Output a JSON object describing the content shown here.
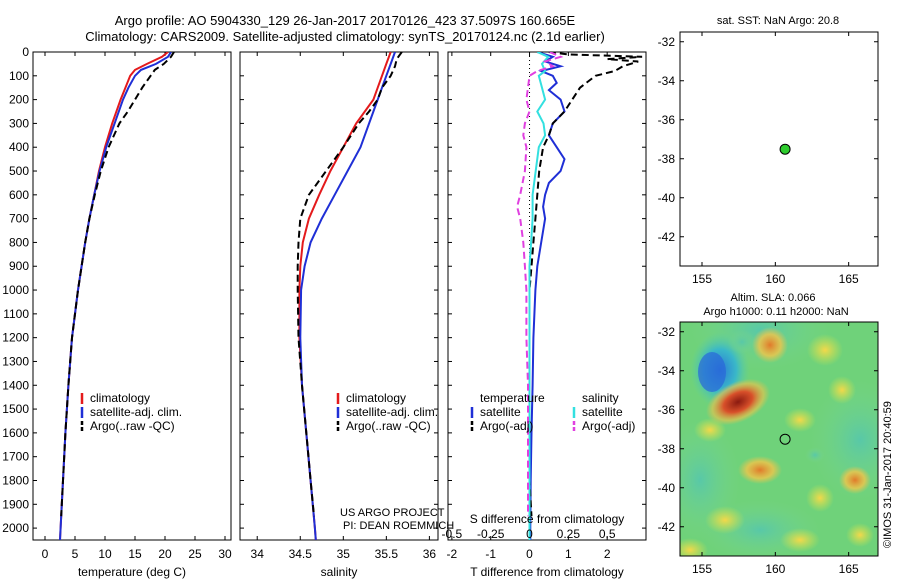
{
  "header": {
    "line1": "Argo profile: AO 5904330_129 26-Jan-2017 20170126_423 37.5097S 160.665E",
    "line2": "Climatology: CARS2009. Satellite-adjusted climatology: synTS_20170124.nc (2.1d earlier)"
  },
  "colors": {
    "climatology": "#e41a1c",
    "satellite": "#1f2fd6",
    "argo": "#000000",
    "salinity_satellite": "#33e0e0",
    "salinity_argo": "#e040e0",
    "float_marker": "#2ecc2e"
  },
  "map_top": {
    "title": "sat. SST: NaN Argo: 20.8"
  },
  "map_bottom": {
    "title_line1": "Altim. SLA: 0.066",
    "title_line2": "Argo h1000: 0.11 h2000: NaN"
  },
  "credit": "©IMOS 31-Jan-2017 20:40:59",
  "chart_data": [
    {
      "type": "line",
      "xlabel": "temperature (deg C)",
      "ylabel": "",
      "xlim": [
        -2,
        31
      ],
      "ylim": [
        2050,
        0
      ],
      "xticks": [
        "0",
        "5",
        "10",
        "15",
        "20",
        "25",
        "30"
      ],
      "yticks": [
        "0",
        "100",
        "200",
        "300",
        "400",
        "500",
        "600",
        "700",
        "800",
        "900",
        "1000",
        "1100",
        "1200",
        "1300",
        "1400",
        "1500",
        "1600",
        "1700",
        "1800",
        "1900",
        "2000"
      ],
      "legend": [
        "climatology",
        "satellite-adj. clim.",
        "Argo(..raw -QC)"
      ],
      "legend_position": "lower-center",
      "series": [
        {
          "name": "climatology",
          "style": "solid",
          "color": "#e41a1c",
          "depth": [
            0,
            20,
            50,
            75,
            100,
            150,
            200,
            300,
            400,
            500,
            600,
            700,
            800,
            900,
            1000,
            1200,
            1400,
            1600,
            1800,
            2000,
            2050
          ],
          "values": [
            20.5,
            19.5,
            17,
            15,
            14.2,
            13.4,
            12.6,
            11.2,
            10,
            9,
            8.2,
            7.4,
            6.7,
            6.1,
            5.5,
            4.5,
            3.9,
            3.4,
            3.0,
            2.6,
            2.5
          ]
        },
        {
          "name": "satellite-adj. clim.",
          "style": "solid",
          "color": "#1f2fd6",
          "depth": [
            0,
            20,
            50,
            75,
            100,
            150,
            200,
            300,
            400,
            500,
            600,
            700,
            800,
            900,
            1000,
            1200,
            1400,
            1600,
            1800,
            2000,
            2050
          ],
          "values": [
            21,
            20.5,
            18.5,
            16,
            15,
            13.9,
            13,
            11.6,
            10.2,
            9.1,
            8.2,
            7.4,
            6.7,
            6.1,
            5.5,
            4.5,
            3.9,
            3.4,
            3.0,
            2.6,
            2.5
          ]
        },
        {
          "name": "Argo(..raw -QC)",
          "style": "dashed",
          "color": "#000000",
          "depth": [
            0,
            20,
            50,
            75,
            100,
            150,
            200,
            250,
            300,
            400,
            500,
            600,
            700,
            800,
            900,
            1000,
            1200,
            1400,
            1600,
            1800,
            1950
          ],
          "values": [
            21.5,
            21,
            19.8,
            18.3,
            17.6,
            16.2,
            15,
            13.8,
            12.4,
            10.6,
            9.3,
            8.3,
            7.4,
            6.7,
            6.1,
            5.5,
            4.5,
            3.9,
            3.4,
            3.0,
            2.7
          ]
        }
      ]
    },
    {
      "type": "line",
      "xlabel": "salinity",
      "ylabel": "",
      "xlim": [
        33.8,
        36.1
      ],
      "ylim": [
        2050,
        0
      ],
      "xticks": [
        "34",
        "34.5",
        "35",
        "35.5",
        "36"
      ],
      "legend": [
        "climatology",
        "satellite-adj. clim.",
        "Argo(..raw -QC)"
      ],
      "legend_position": "lower-center",
      "annotation": [
        "US ARGO PROJECT",
        "PI: DEAN ROEMMICH"
      ],
      "series": [
        {
          "name": "climatology",
          "style": "solid",
          "color": "#e41a1c",
          "depth": [
            0,
            50,
            100,
            150,
            200,
            300,
            400,
            500,
            600,
            700,
            800,
            900,
            1000,
            1200,
            1400,
            1600,
            1800,
            2000,
            2050
          ],
          "values": [
            35.55,
            35.5,
            35.45,
            35.4,
            35.35,
            35.15,
            35.0,
            34.85,
            34.72,
            34.6,
            34.53,
            34.5,
            34.49,
            34.49,
            34.52,
            34.57,
            34.62,
            34.67,
            34.68
          ]
        },
        {
          "name": "satellite-adj. clim.",
          "style": "solid",
          "color": "#1f2fd6",
          "depth": [
            0,
            50,
            100,
            150,
            200,
            250,
            300,
            400,
            500,
            600,
            700,
            800,
            900,
            1000,
            1200,
            1400,
            1600,
            1800,
            2000,
            2050
          ],
          "values": [
            35.6,
            35.55,
            35.5,
            35.45,
            35.4,
            35.35,
            35.3,
            35.2,
            35.05,
            34.9,
            34.75,
            34.62,
            34.55,
            34.51,
            34.5,
            34.52,
            34.57,
            34.62,
            34.67,
            34.68
          ]
        },
        {
          "name": "Argo(..raw -QC)",
          "style": "dashed",
          "color": "#000000",
          "depth": [
            0,
            30,
            60,
            100,
            150,
            200,
            250,
            300,
            400,
            500,
            600,
            700,
            800,
            900,
            1000,
            1200,
            1400,
            1600,
            1800,
            1950
          ],
          "values": [
            35.68,
            35.62,
            35.6,
            35.55,
            35.45,
            35.4,
            35.3,
            35.18,
            35.0,
            34.8,
            34.6,
            34.5,
            34.48,
            34.47,
            34.47,
            34.48,
            34.52,
            34.57,
            34.62,
            34.66
          ]
        }
      ]
    },
    {
      "type": "line",
      "xlabel": "T difference from climatology",
      "secondary_xlabel": "S difference from climatology",
      "xlim": [
        -2.1,
        3.0
      ],
      "secondary_xlim": [
        -0.525,
        0.75
      ],
      "ylim": [
        2050,
        0
      ],
      "xticks": [
        "-2",
        "-1",
        "0",
        "1",
        "2"
      ],
      "secondary_xticks": [
        "-0.5",
        "-0.25",
        "0",
        "0.25",
        "0.5"
      ],
      "legend_groups": [
        {
          "title": "temperature",
          "entries": [
            "satellite",
            "Argo(-adj)"
          ]
        },
        {
          "title": "salinity",
          "entries": [
            "satellite",
            "Argo(-adj)"
          ]
        }
      ],
      "legend_position": "lower-center",
      "series": [
        {
          "name": "satellite",
          "group": "temperature",
          "style": "solid",
          "color": "#1f2fd6",
          "depth": [
            0,
            20,
            40,
            60,
            80,
            100,
            130,
            160,
            200,
            250,
            300,
            350,
            400,
            450,
            500,
            550,
            600,
            650,
            700,
            800,
            900,
            1000,
            1200,
            1400,
            1600,
            1800,
            2000,
            2050
          ],
          "values": [
            0.2,
            0.6,
            0.4,
            0.8,
            0.3,
            0.6,
            0.7,
            0.5,
            0.8,
            0.9,
            0.6,
            0.5,
            0.7,
            0.9,
            0.8,
            0.5,
            0.4,
            0.35,
            0.4,
            0.3,
            0.2,
            0.15,
            0.1,
            0.08,
            0.05,
            0.03,
            0.02,
            0.02
          ]
        },
        {
          "name": "Argo(-adj)",
          "group": "temperature",
          "style": "dashed",
          "color": "#000000",
          "depth": [
            0,
            10,
            20,
            30,
            40,
            50,
            60,
            80,
            100,
            150,
            200,
            250,
            300,
            350,
            400,
            500,
            600,
            700,
            800,
            900,
            1000,
            1200,
            1400,
            1600,
            1800,
            1950
          ],
          "values": [
            0.5,
            1.0,
            2.9,
            2.0,
            2.8,
            2.6,
            2.4,
            2.2,
            1.7,
            1.3,
            1.1,
            0.9,
            0.6,
            0.5,
            0.35,
            0.25,
            0.2,
            0.15,
            0.1,
            0.05,
            0.0,
            0.0,
            0.0,
            0.0,
            0.0,
            0.05
          ]
        },
        {
          "name": "satellite",
          "group": "salinity",
          "style": "solid",
          "color": "#33e0e0",
          "depth": [
            0,
            20,
            50,
            80,
            100,
            150,
            200,
            250,
            300,
            350,
            400,
            500,
            600,
            700,
            800,
            900,
            1000,
            1200,
            1400,
            1600,
            1800,
            2000,
            2050
          ],
          "values": [
            0.05,
            0.12,
            0.08,
            0.1,
            0.06,
            0.08,
            0.1,
            0.05,
            0.09,
            0.1,
            0.06,
            0.04,
            0.02,
            0.02,
            0.01,
            0.0,
            0.0,
            0.0,
            0.0,
            0.0,
            0.0,
            0.0,
            0.0
          ]
        },
        {
          "name": "Argo(-adj)",
          "group": "salinity",
          "style": "dashed",
          "color": "#e040e0",
          "depth": [
            0,
            20,
            40,
            60,
            80,
            100,
            150,
            200,
            250,
            300,
            350,
            400,
            500,
            600,
            650,
            700,
            800,
            900,
            1000,
            1200,
            1400,
            1600,
            1800,
            1950
          ],
          "values": [
            0.13,
            0.2,
            0.1,
            0.15,
            0.05,
            0.0,
            -0.01,
            -0.02,
            0.0,
            -0.03,
            -0.04,
            -0.02,
            -0.03,
            -0.06,
            -0.08,
            -0.06,
            -0.04,
            -0.03,
            -0.02,
            -0.02,
            -0.01,
            -0.01,
            -0.01,
            -0.01
          ]
        }
      ]
    },
    {
      "type": "scatter",
      "title": "sat. SST: NaN Argo: 20.8",
      "xlim": [
        153.5,
        167
      ],
      "ylim": [
        -43.5,
        -31.5
      ],
      "xticks": [
        "155",
        "160",
        "165"
      ],
      "yticks": [
        "-32",
        "-34",
        "-36",
        "-38",
        "-40",
        "-42"
      ],
      "points": [
        {
          "x": 160.665,
          "y": -37.5097
        }
      ]
    },
    {
      "type": "heatmap",
      "title": "Altim. SLA: 0.066 / Argo h1000: 0.11 h2000: NaN",
      "xlim": [
        153.5,
        167
      ],
      "ylim": [
        -43.5,
        -31.5
      ],
      "xticks": [
        "155",
        "160",
        "165"
      ],
      "yticks": [
        "-32",
        "-34",
        "-36",
        "-38",
        "-40",
        "-42"
      ],
      "points": [
        {
          "x": 160.665,
          "y": -37.5097
        }
      ]
    }
  ]
}
